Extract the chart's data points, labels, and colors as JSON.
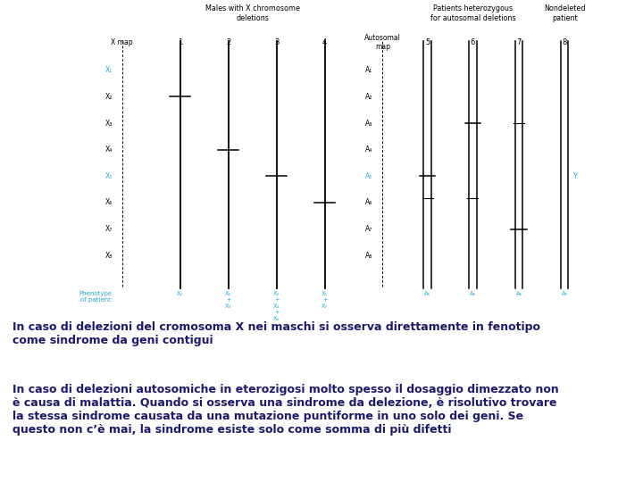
{
  "title_left": "Males with X chromosome\ndeletions",
  "title_right1": "Patients heterozygous\nfor autosomal deletions",
  "title_right2": "Nondeleted\npatient",
  "x_labels": [
    "X₁",
    "X₂",
    "X₃",
    "X₄",
    "X₅",
    "X₆",
    "X₇",
    "X₈"
  ],
  "a_labels": [
    "A₁",
    "A₂",
    "A₃",
    "A₄",
    "A₅",
    "A₆",
    "A₇",
    "A₈"
  ],
  "phenotype_label": "Phenotype\nof patient:",
  "text_color_blue": "#29ABD4",
  "text_color_dark": "#1a1a6e",
  "line_color": "#000000",
  "background": "#ffffff",
  "text1_line1": "In caso di delezioni del cromosoma X nei maschi si osserva direttamente in fenotipo",
  "text1_line2": "come sindrome da geni contigui",
  "text2_line1": "In caso di delezioni autosomiche in eterozigosi molto spesso il dosaggio dimezzato non",
  "text2_line2": "è causa di malattia. Quando si osserva una sindrome da delezione, è risolutivo trovare",
  "text2_line3": "la stessa sindrome causata da una mutazione puntiforme in uno solo dei geni. Se",
  "text2_line4": "questo non c’è mai, la sindrome esiste solo come somma di più difetti"
}
